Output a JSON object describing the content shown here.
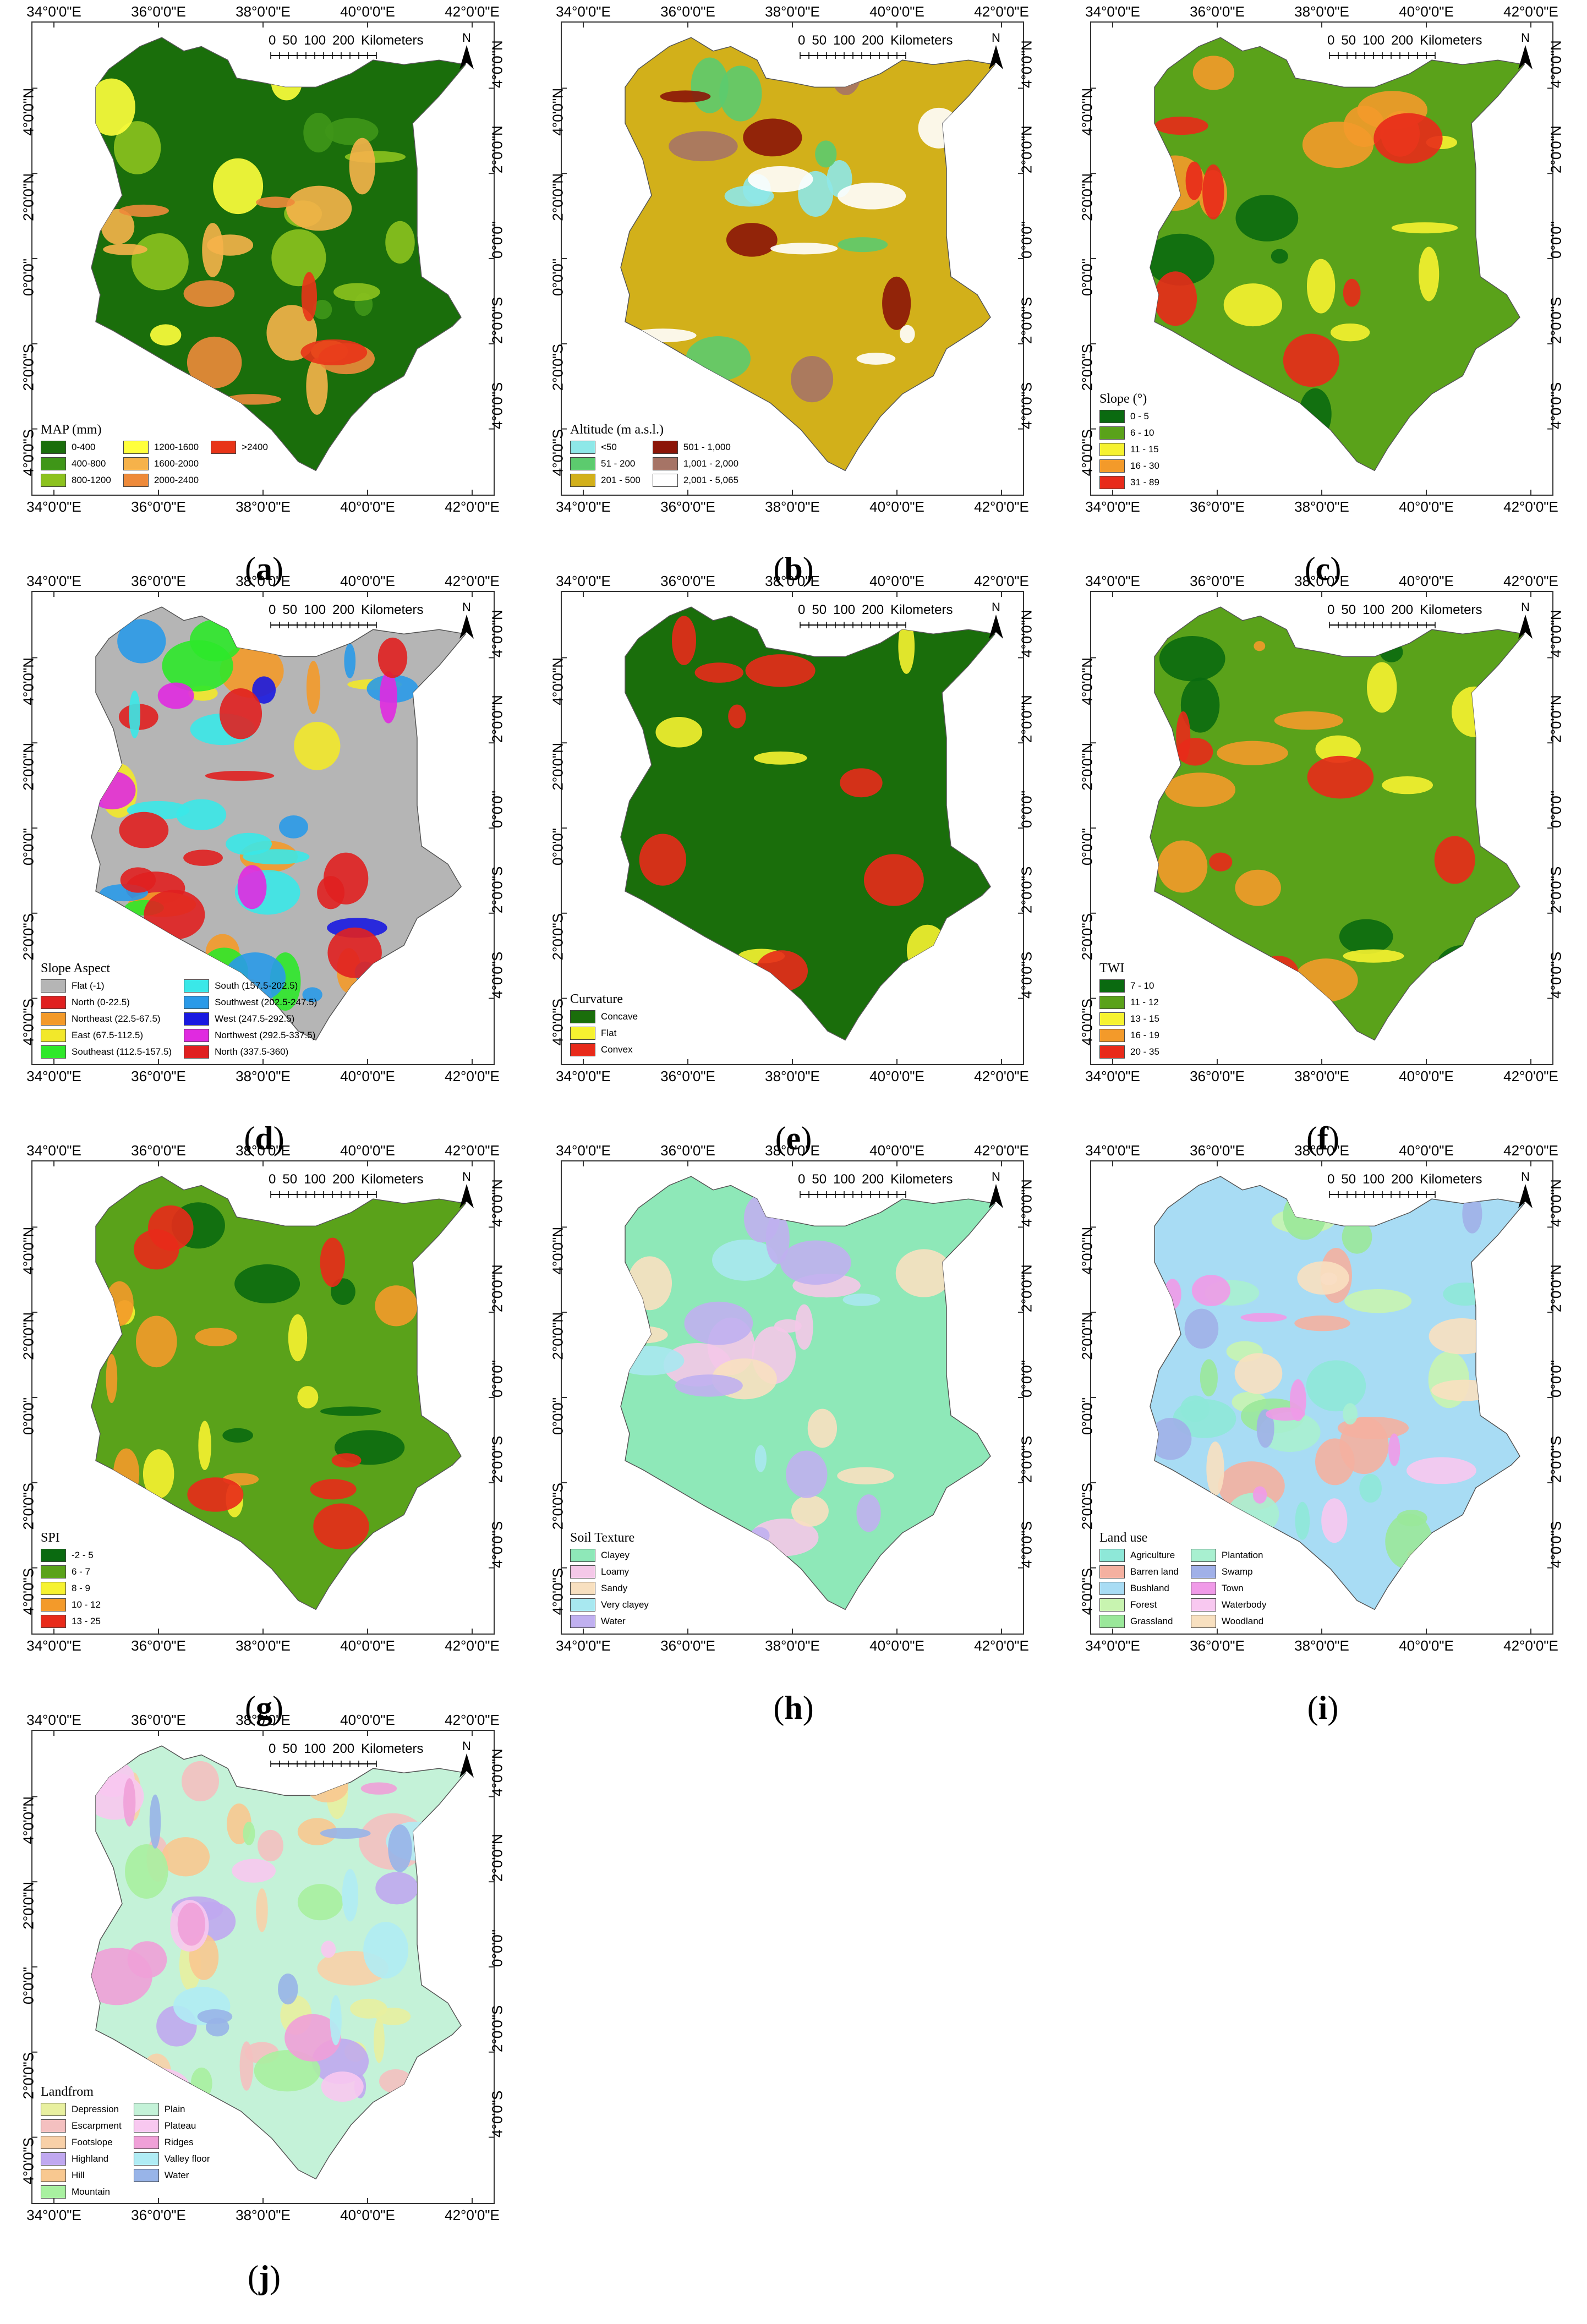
{
  "axis_ticks": {
    "x": [
      "34°0'0\"E",
      "36°0'0\"E",
      "38°0'0\"E",
      "40°0'0\"E",
      "42°0'0\"E"
    ],
    "y": [
      "4°0'0\"N",
      "2°0'0\"N",
      "0°0'0\"",
      "2°0'0\"S",
      "4°0'0\"S"
    ]
  },
  "scalebar": {
    "values": [
      "0",
      "50",
      "100",
      "200"
    ],
    "unit": "Kilometers"
  },
  "north_label": "N",
  "panels": [
    {
      "letter": "a",
      "legend_title": "MAP (mm)",
      "rows": 3,
      "classes": [
        {
          "label": "0-400",
          "color": "#1a6e0b"
        },
        {
          "label": "400-800",
          "color": "#3f9618"
        },
        {
          "label": "800-1200",
          "color": "#8cc21e"
        },
        {
          "label": "1200-1600",
          "color": "#ffff3c"
        },
        {
          "label": "1600-2000",
          "color": "#f6b24a"
        },
        {
          "label": "2000-2400",
          "color": "#ee8a3a"
        },
        {
          "label": ">2400",
          "color": "#e83418"
        }
      ]
    },
    {
      "letter": "b",
      "legend_title": "Altitude (m a.s.l.)",
      "rows": 3,
      "classes": [
        {
          "label": "<50",
          "color": "#8ee8e8"
        },
        {
          "label": "51 - 200",
          "color": "#5ccb6e"
        },
        {
          "label": "201 - 500",
          "color": "#d2b01a"
        },
        {
          "label": "501 - 1,000",
          "color": "#8b1508"
        },
        {
          "label": "1,001 - 2,000",
          "color": "#a67466"
        },
        {
          "label": "2,001 - 5,065",
          "color": "#ffffff"
        }
      ]
    },
    {
      "letter": "c",
      "legend_title": "Slope (°)",
      "rows": 5,
      "classes": [
        {
          "label": "0 - 5",
          "color": "#0a6a10"
        },
        {
          "label": "6 - 10",
          "color": "#5aa21a"
        },
        {
          "label": "11 - 15",
          "color": "#f6f230"
        },
        {
          "label": "16 - 30",
          "color": "#f39a2a"
        },
        {
          "label": "31 - 89",
          "color": "#e82a1a"
        }
      ]
    },
    {
      "letter": "d",
      "legend_title": "Slope Aspect",
      "rows": 5,
      "classes": [
        {
          "label": "Flat (-1)",
          "color": "#b5b5b5"
        },
        {
          "label": "North (0-22.5)",
          "color": "#e02020"
        },
        {
          "label": "Northeast (22.5-67.5)",
          "color": "#f39a2a"
        },
        {
          "label": "East (67.5-112.5)",
          "color": "#f2e82a"
        },
        {
          "label": "Southeast (112.5-157.5)",
          "color": "#2ee82a"
        },
        {
          "label": "South (157.5-202.5)",
          "color": "#3ae8e8"
        },
        {
          "label": "Southwest (202.5-247.5)",
          "color": "#2a9ae8"
        },
        {
          "label": "West (247.5-292.5)",
          "color": "#1a1ae0"
        },
        {
          "label": "Northwest (292.5-337.5)",
          "color": "#e02ae0"
        },
        {
          "label": "North (337.5-360)",
          "color": "#e02020"
        }
      ]
    },
    {
      "letter": "e",
      "legend_title": "Curvature",
      "rows": 3,
      "classes": [
        {
          "label": "Concave",
          "color": "#1a6e0b"
        },
        {
          "label": "Flat",
          "color": "#f6f230"
        },
        {
          "label": "Convex",
          "color": "#e82a1a"
        }
      ]
    },
    {
      "letter": "f",
      "legend_title": "TWI",
      "rows": 5,
      "classes": [
        {
          "label": "7 - 10",
          "color": "#0a6a10"
        },
        {
          "label": "11 - 12",
          "color": "#5aa21a"
        },
        {
          "label": "13 - 15",
          "color": "#f6f230"
        },
        {
          "label": "16 - 19",
          "color": "#f39a2a"
        },
        {
          "label": "20 - 35",
          "color": "#e82a1a"
        }
      ]
    },
    {
      "letter": "g",
      "legend_title": "SPI",
      "rows": 5,
      "classes": [
        {
          "label": "-2 - 5",
          "color": "#0a6a10"
        },
        {
          "label": "6 - 7",
          "color": "#5aa21a"
        },
        {
          "label": "8 - 9",
          "color": "#f6f230"
        },
        {
          "label": "10 - 12",
          "color": "#f39a2a"
        },
        {
          "label": "13 - 25",
          "color": "#e82a1a"
        }
      ]
    },
    {
      "letter": "h",
      "legend_title": "Soil Texture",
      "rows": 5,
      "classes": [
        {
          "label": "Clayey",
          "color": "#8ee8b8"
        },
        {
          "label": "Loamy",
          "color": "#f4c8e8"
        },
        {
          "label": "Sandy",
          "color": "#f8e0c0"
        },
        {
          "label": "Very clayey",
          "color": "#a8e8f0"
        },
        {
          "label": "Water",
          "color": "#c0b0f0"
        }
      ]
    },
    {
      "letter": "i",
      "legend_title": "Land use",
      "rows": 5,
      "classes": [
        {
          "label": "Agriculture",
          "color": "#8ee8d8"
        },
        {
          "label": "Barren land",
          "color": "#f4b0a0"
        },
        {
          "label": "Bushland",
          "color": "#a8dcf4"
        },
        {
          "label": "Forest",
          "color": "#c8f4b0"
        },
        {
          "label": "Grassland",
          "color": "#9ae89a"
        },
        {
          "label": "Plantation",
          "color": "#a8f0d0"
        },
        {
          "label": "Swamp",
          "color": "#a0b0e8"
        },
        {
          "label": "Town",
          "color": "#f09ae8"
        },
        {
          "label": "Waterbody",
          "color": "#f8c8f0"
        },
        {
          "label": "Woodland",
          "color": "#f8e0c0"
        }
      ]
    },
    {
      "letter": "j",
      "legend_title": "Landfrom",
      "rows": 6,
      "classes": [
        {
          "label": "Depression",
          "color": "#e8f0a0"
        },
        {
          "label": "Escarpment",
          "color": "#f4c0c0"
        },
        {
          "label": "Footslope",
          "color": "#f8d0a8"
        },
        {
          "label": "Highland",
          "color": "#c0a8f0"
        },
        {
          "label": "Hill",
          "color": "#f8c890"
        },
        {
          "label": "Mountain",
          "color": "#a8f0a0"
        },
        {
          "label": "Plain",
          "color": "#c4f2d8"
        },
        {
          "label": "Plateau",
          "color": "#f8c8f0"
        },
        {
          "label": "Ridges",
          "color": "#f0a0d8"
        },
        {
          "label": "Valley floor",
          "color": "#b0ecf4"
        },
        {
          "label": "Water",
          "color": "#98b4e8"
        }
      ]
    }
  ]
}
